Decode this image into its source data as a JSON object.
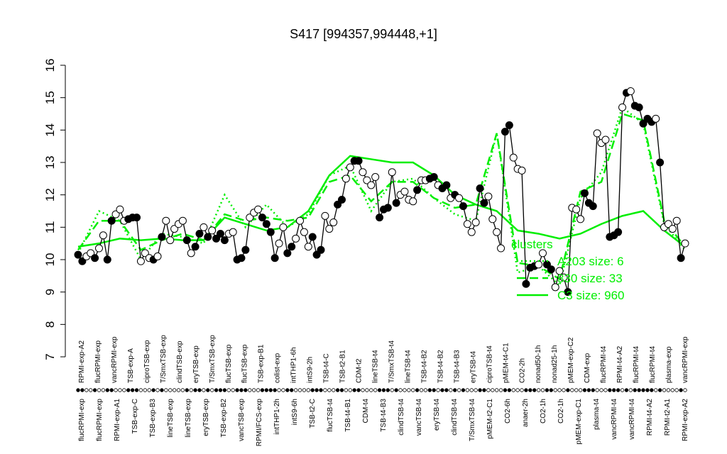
{
  "chart_data": {
    "type": "line",
    "title": "S417 [994357,994448,+1]",
    "ylim": [
      7,
      16
    ],
    "yticks": [
      7,
      8,
      9,
      10,
      11,
      12,
      13,
      14,
      15,
      16
    ],
    "series": [
      {
        "color": "#000000",
        "values": [
          10.15,
          9.95,
          10.1,
          10.2,
          10.05,
          10.35,
          10.75,
          10.0,
          11.2,
          11.4,
          11.55,
          11.2,
          11.25,
          11.3,
          11.3,
          9.95,
          10.2,
          10.05,
          10.0,
          10.1,
          10.7,
          11.2,
          10.6,
          10.95,
          11.1,
          11.2,
          10.6,
          10.2,
          10.4,
          10.8,
          11.0,
          10.7,
          10.9,
          10.65,
          10.8,
          10.6,
          10.8,
          10.85,
          10.0,
          10.05,
          10.3,
          11.3,
          11.45,
          11.55,
          11.3,
          11.1,
          10.85,
          10.05,
          10.5,
          11.0,
          10.2,
          10.4,
          10.65,
          11.2,
          10.85,
          10.4,
          10.7,
          10.15,
          10.3,
          11.35,
          10.95,
          11.15,
          11.7,
          11.85,
          12.5,
          12.85,
          13.05,
          13.05,
          12.7,
          12.45,
          12.3,
          12.55,
          11.3,
          11.55,
          11.6,
          12.7,
          11.75,
          12.0,
          12.1,
          11.85,
          11.8,
          12.15,
          12.45,
          12.45,
          12.5,
          12.55,
          12.3,
          12.2,
          12.3,
          11.9,
          12.0,
          11.9,
          11.65,
          11.1,
          10.85,
          11.15,
          12.2,
          11.75,
          11.95,
          11.25,
          10.85,
          10.35,
          13.95,
          14.15,
          13.15,
          12.8,
          12.75,
          9.25,
          9.75,
          9.8,
          9.85,
          10.2,
          9.85,
          9.7,
          9.15,
          9.65,
          9.45,
          9.0,
          11.6,
          11.55,
          11.25,
          12.05,
          11.75,
          11.65,
          13.9,
          13.6,
          13.7,
          10.7,
          10.75,
          10.85,
          14.7,
          15.15,
          15.2,
          14.75,
          14.7,
          14.2,
          14.35,
          14.25,
          14.35,
          13.0,
          11.0,
          11.1,
          10.95,
          11.2,
          10.05,
          10.5
        ],
        "filled": [
          1,
          1,
          0,
          0,
          1,
          0,
          0,
          1,
          1,
          0,
          0,
          0,
          1,
          1,
          1,
          0,
          0,
          0,
          1,
          0,
          1,
          0,
          0,
          0,
          0,
          0,
          1,
          0,
          1,
          1,
          0,
          1,
          0,
          1,
          1,
          1,
          0,
          0,
          1,
          1,
          1,
          0,
          0,
          0,
          1,
          1,
          1,
          1,
          0,
          0,
          1,
          1,
          0,
          0,
          0,
          0,
          1,
          1,
          1,
          0,
          0,
          0,
          1,
          1,
          0,
          0,
          1,
          1,
          0,
          0,
          0,
          0,
          1,
          1,
          1,
          0,
          1,
          0,
          0,
          0,
          0,
          1,
          0,
          0,
          1,
          1,
          0,
          1,
          1,
          0,
          1,
          0,
          1,
          0,
          0,
          0,
          1,
          1,
          0,
          0,
          0,
          0,
          1,
          1,
          0,
          0,
          0,
          1,
          1,
          1,
          0,
          0,
          1,
          1,
          0,
          0,
          0,
          1,
          0,
          0,
          0,
          1,
          1,
          1,
          0,
          0,
          0,
          1,
          1,
          1,
          0,
          1,
          0,
          1,
          1,
          1,
          1,
          1,
          0,
          1,
          0,
          0,
          0,
          0,
          1,
          0
        ]
      },
      {
        "name": "A203 size: 6",
        "color": "#00ee00",
        "dash": "dotted",
        "values": [
          10.2,
          11.5,
          11.2,
          10.0,
          10.8,
          10.7,
          10.5,
          12.0,
          11.0,
          11.7,
          11.0,
          11.4,
          12.6,
          12.9,
          11.5,
          12.4,
          12.5,
          11.9,
          11.4,
          11.2,
          13.9,
          9.6,
          9.8,
          9.2,
          11.9,
          12.7,
          14.7,
          14.2,
          11.1,
          10.3
        ]
      },
      {
        "name": "330 size: 33",
        "color": "#00ee00",
        "dash": "dashed",
        "values": [
          10.3,
          11.2,
          11.2,
          10.3,
          10.6,
          10.8,
          10.6,
          11.4,
          11.2,
          11.3,
          11.2,
          11.3,
          12.4,
          12.6,
          11.8,
          12.4,
          12.4,
          11.9,
          11.6,
          11.7,
          13.9,
          9.9,
          9.8,
          9.4,
          12.1,
          12.4,
          14.5,
          14.3,
          11.2,
          10.4
        ]
      },
      {
        "name": "C3 size: 960",
        "color": "#00ee00",
        "dash": "solid",
        "values": [
          10.4,
          10.5,
          10.65,
          10.6,
          10.65,
          10.6,
          10.6,
          11.3,
          11.1,
          10.9,
          11.0,
          11.5,
          12.6,
          13.2,
          13.1,
          13.0,
          13.0,
          12.6,
          12.0,
          11.7,
          11.5,
          10.9,
          10.8,
          10.65,
          10.8,
          11.1,
          11.35,
          11.5,
          10.9,
          10.4
        ]
      }
    ],
    "legend_title": "clusters",
    "top_labels": [
      "RPMI-exp-A2",
      "flucRPMI-exp",
      "vancRPMI-exp",
      "TSB-exp-A",
      "ciproTSB-exp",
      "T/SmxTSB-exp",
      "clindTSB-exp",
      "eryTSB-exp",
      "T/SmxTSB-exp",
      "flucTSB-exp",
      "flucTSB-exp",
      "TSB-exp-B1",
      "colist-exp",
      "intTHP1-6h",
      "intS9-2h",
      "TSB-t4-C",
      "TSB-t2-B1",
      "CDM-t2",
      "lineTSB-t4",
      "T/SmxTSB-t4",
      "lineTSB-t4",
      "TSB-t4-B2",
      "TSB-t4-B2",
      "TSB-t4-B3",
      "eryTSB-t4",
      "ciproTSB-t4",
      "pMEM-t4-C1",
      "CO2-2h",
      "nonad50-1h",
      "nonad25-1h",
      "pMEM-exp-C2",
      "CDM-exp",
      "flucRPMI-t4",
      "RPMI-t4-A2",
      "flucRPMI-t4",
      "flucRPMI-t4",
      "plasma-exp",
      "vancRPMI-exp"
    ],
    "bottom_labels": [
      "flucRPMI-exp",
      "flucRPMI-exp",
      "RPMI-exp-A1",
      "TSB-exp-C",
      "TSB-exp-B3",
      "lineTSB-exp",
      "lineTSB-exp",
      "eryTSB-exp",
      "TSB-exp-B2",
      "vancTSB-exp",
      "RPMI/FCS-exp",
      "intTHP1-2h",
      "intS9-6h",
      "TSB-t2-C",
      "flucTSB-t4",
      "TSB-t4-B1",
      "CDM-t4",
      "TSB-t4-B3",
      "clindTSB-t4",
      "vancTSB-t4",
      "eryTSB-t4",
      "clindTSB-t4",
      "T/SmxTSB-t4",
      "pMEM-t2-C1",
      "CO2-6h",
      "anaer-2h",
      "CO2-1h",
      "CO2-1h",
      "pMEM-exp-C1",
      "plasma-t4",
      "vancRPMI-t4",
      "vancRPMI-t4",
      "RPMI-t4-A2",
      "RPMI-t2-A1",
      "RPMI-exp-A2"
    ]
  }
}
